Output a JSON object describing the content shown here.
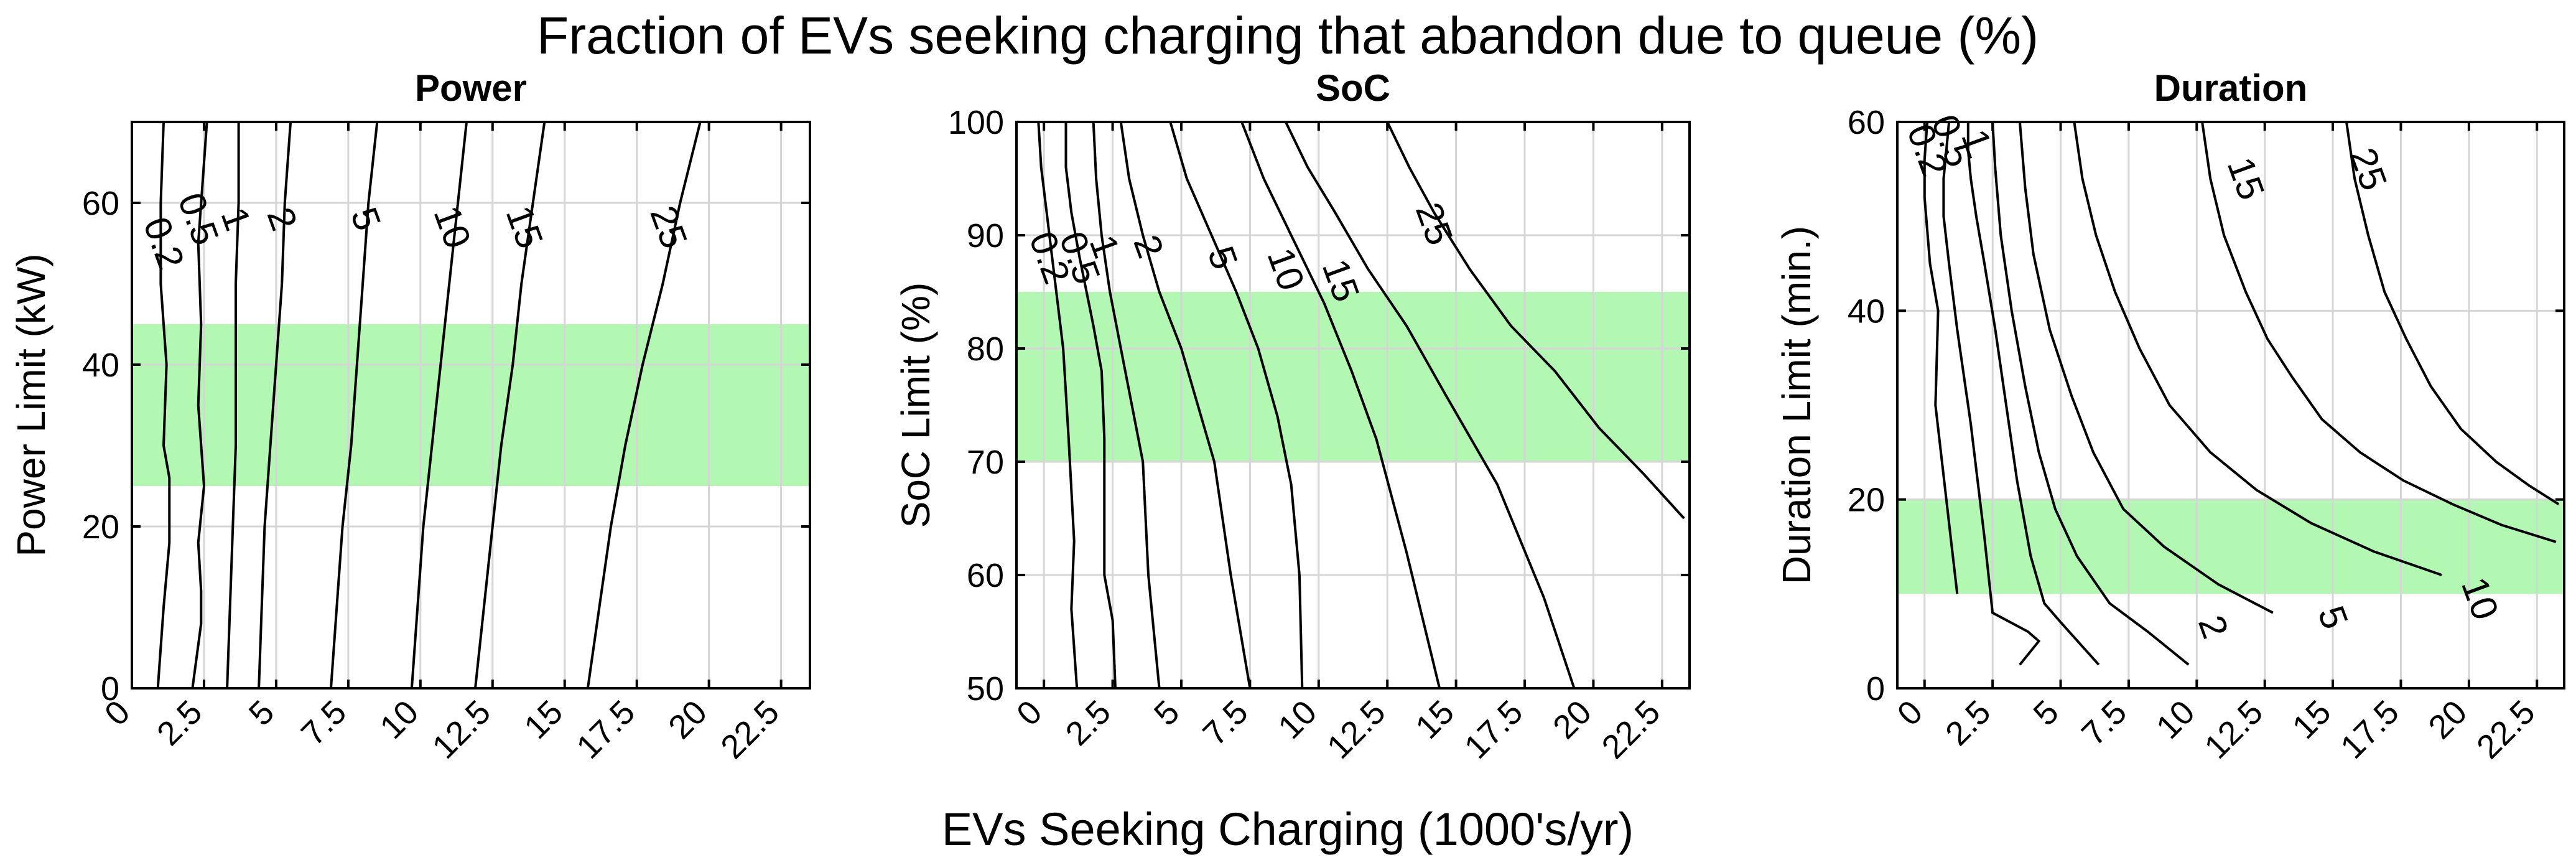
{
  "figure": {
    "title": "Fraction of EVs seeking charging that abandon due to queue (%)",
    "xlabel": "EVs Seeking Charging (1000's/yr)"
  },
  "colors": {
    "band": "#b2f7b2",
    "contour": "#000000",
    "grid": "#d6d6d6"
  },
  "chart_data": [
    {
      "type": "line",
      "title": "Power",
      "xlabel": "EVs Seeking Charging (1000's/yr)",
      "ylabel": "Power Limit (kW)",
      "xlim": [
        0,
        23.5
      ],
      "ylim": [
        0,
        70
      ],
      "xticks": [
        0,
        2.5,
        5,
        7.5,
        10,
        12.5,
        15,
        17.5,
        20,
        22.5
      ],
      "yticks": [
        0,
        20,
        40,
        60
      ],
      "grid": true,
      "band": [
        25,
        45
      ],
      "series": [
        {
          "name": "0.2",
          "x": [
            0.9,
            1.1,
            1.3,
            1.3,
            1.1,
            1.2,
            1.1,
            1.0,
            1.0,
            1.0,
            1.1
          ],
          "y": [
            0,
            10,
            18,
            26,
            30,
            40,
            45,
            50,
            55,
            60,
            70
          ],
          "label_at": [
            1.1,
            55
          ]
        },
        {
          "name": "0.5",
          "x": [
            2.1,
            2.4,
            2.4,
            2.3,
            2.5,
            2.3,
            2.4,
            2.3,
            2.5,
            2.6
          ],
          "y": [
            0,
            8,
            12,
            18,
            25,
            35,
            45,
            55,
            65,
            70
          ],
          "label_at": [
            2.3,
            58
          ]
        },
        {
          "name": "1",
          "x": [
            3.3,
            3.4,
            3.5,
            3.6,
            3.6,
            3.6,
            3.7,
            3.7
          ],
          "y": [
            0,
            10,
            20,
            30,
            40,
            50,
            60,
            70
          ],
          "label_at": [
            3.6,
            58
          ]
        },
        {
          "name": "2",
          "x": [
            4.4,
            4.5,
            4.6,
            4.8,
            5.0,
            5.2,
            5.3,
            5.5
          ],
          "y": [
            0,
            10,
            20,
            30,
            40,
            50,
            60,
            70
          ],
          "label_at": [
            5.2,
            58
          ]
        },
        {
          "name": "5",
          "x": [
            6.9,
            7.1,
            7.3,
            7.6,
            7.8,
            8.0,
            8.2,
            8.5
          ],
          "y": [
            0,
            10,
            20,
            30,
            40,
            50,
            60,
            70
          ],
          "label_at": [
            8.1,
            58
          ]
        },
        {
          "name": "10",
          "x": [
            9.7,
            9.9,
            10.1,
            10.4,
            10.7,
            11.0,
            11.3,
            11.6
          ],
          "y": [
            0,
            10,
            20,
            30,
            40,
            50,
            60,
            70
          ],
          "label_at": [
            11.1,
            57
          ]
        },
        {
          "name": "15",
          "x": [
            11.9,
            12.2,
            12.5,
            12.8,
            13.2,
            13.5,
            13.9,
            14.3
          ],
          "y": [
            0,
            10,
            20,
            30,
            40,
            50,
            60,
            70
          ],
          "label_at": [
            13.6,
            57
          ]
        },
        {
          "name": "25",
          "x": [
            15.8,
            16.2,
            16.6,
            17.1,
            17.7,
            18.4,
            19.0,
            19.7
          ],
          "y": [
            0,
            10,
            20,
            30,
            40,
            50,
            60,
            70
          ],
          "label_at": [
            18.6,
            57
          ]
        }
      ]
    },
    {
      "type": "line",
      "title": "SoC",
      "xlabel": "EVs Seeking Charging (1000's/yr)",
      "ylabel": "SoC Limit (%)",
      "xlim": [
        -1,
        23.5
      ],
      "ylim": [
        50,
        100
      ],
      "xticks": [
        0,
        2.5,
        5,
        7.5,
        10,
        12.5,
        15,
        17.5,
        20,
        22.5
      ],
      "yticks": [
        50,
        60,
        70,
        80,
        90,
        100
      ],
      "grid": true,
      "band": [
        70,
        85
      ],
      "series": [
        {
          "name": "0.2",
          "x": [
            -0.2,
            -0.1,
            0.1,
            0.3,
            0.7,
            0.9,
            1.1,
            1.0,
            1.2
          ],
          "y": [
            100,
            96,
            92,
            88,
            80,
            72,
            63,
            57,
            50
          ],
          "label_at": [
            0.2,
            88
          ]
        },
        {
          "name": "0.5",
          "x": [
            0.8,
            0.8,
            1.0,
            1.3,
            1.8,
            2.1,
            2.2,
            2.2,
            2.5,
            2.6
          ],
          "y": [
            100,
            96,
            92,
            88,
            82,
            78,
            72,
            60,
            56,
            50
          ],
          "label_at": [
            1.3,
            88
          ]
        },
        {
          "name": "1",
          "x": [
            1.8,
            1.9,
            2.1,
            2.4,
            2.8,
            3.2,
            3.6,
            3.8,
            4.2
          ],
          "y": [
            100,
            95,
            90,
            85,
            80,
            75,
            70,
            60,
            50
          ],
          "label_at": [
            2.2,
            89
          ]
        },
        {
          "name": "2",
          "x": [
            2.8,
            3.1,
            3.6,
            4.2,
            5.0,
            5.6,
            6.2,
            6.8,
            7.5
          ],
          "y": [
            100,
            95,
            90,
            85,
            80,
            75,
            70,
            60,
            50
          ],
          "label_at": [
            3.8,
            89
          ]
        },
        {
          "name": "5",
          "x": [
            4.6,
            5.2,
            6.1,
            7.0,
            7.8,
            8.5,
            9.0,
            9.3,
            9.4
          ],
          "y": [
            100,
            95,
            90,
            85,
            80,
            74,
            68,
            60,
            50
          ],
          "label_at": [
            6.5,
            88
          ]
        },
        {
          "name": "10",
          "x": [
            7.2,
            8.0,
            9.0,
            10.2,
            11.2,
            12.1,
            13.2,
            14.4
          ],
          "y": [
            100,
            95,
            90,
            84,
            78,
            72,
            62,
            50
          ],
          "label_at": [
            8.8,
            87
          ]
        },
        {
          "name": "15",
          "x": [
            8.8,
            9.6,
            10.6,
            11.8,
            13.2,
            14.6,
            16.5,
            18.2,
            19.3
          ],
          "y": [
            100,
            96,
            92,
            87,
            82,
            76,
            68,
            58,
            50
          ],
          "label_at": [
            10.8,
            86
          ]
        },
        {
          "name": "25",
          "x": [
            12.5,
            13.3,
            14.2,
            15.5,
            17.0,
            18.6,
            20.2,
            21.8,
            23.3
          ],
          "y": [
            100,
            96,
            92,
            87,
            82,
            78,
            73,
            69,
            65
          ],
          "label_at": [
            14.2,
            91
          ]
        }
      ]
    },
    {
      "type": "line",
      "title": "Duration",
      "xlabel": "EVs Seeking Charging (1000's/yr)",
      "ylabel": "Duration Limit (min.)",
      "xlim": [
        -1,
        23.5
      ],
      "ylim": [
        0,
        60
      ],
      "xticks": [
        0,
        2.5,
        5,
        7.5,
        10,
        12.5,
        15,
        17.5,
        20,
        22.5
      ],
      "yticks": [
        0,
        20,
        40,
        60
      ],
      "grid": true,
      "band": [
        10,
        20
      ],
      "series": [
        {
          "name": "0.2",
          "x": [
            0.1,
            0.0,
            0.0,
            0.2,
            0.5,
            0.4,
            0.8,
            1.0,
            1.2
          ],
          "y": [
            60,
            56,
            52,
            45,
            40,
            30,
            20,
            15,
            10
          ],
          "label_at": [
            0.1,
            57
          ]
        },
        {
          "name": "0.5",
          "x": [
            0.9,
            0.8,
            0.7,
            0.7,
            0.9,
            1.2,
            1.7,
            2.2,
            2.5,
            3.8,
            4.2,
            3.5
          ],
          "y": [
            60,
            57,
            54,
            50,
            45,
            38,
            28,
            16,
            8,
            6,
            5,
            2.5
          ],
          "label_at": [
            1.0,
            58
          ]
        },
        {
          "name": "1",
          "x": [
            1.6,
            1.6,
            1.7,
            1.9,
            2.2,
            2.6,
            3.0,
            3.4,
            3.9,
            4.4,
            5.0,
            6.4
          ],
          "y": [
            60,
            57,
            54,
            50,
            45,
            38,
            30,
            22,
            14,
            9,
            7,
            2.5
          ],
          "label_at": [
            1.9,
            58
          ]
        },
        {
          "name": "2",
          "x": [
            2.5,
            2.6,
            2.8,
            3.2,
            3.7,
            4.2,
            4.8,
            5.6,
            6.8,
            8.2,
            9.7
          ],
          "y": [
            60,
            55,
            48,
            40,
            32,
            25,
            19,
            14,
            9,
            6,
            2.5
          ],
          "label_at": [
            10.6,
            6.5
          ]
        },
        {
          "name": "5",
          "x": [
            3.5,
            3.7,
            4.0,
            4.6,
            5.4,
            6.2,
            7.3,
            8.8,
            10.8,
            12.8
          ],
          "y": [
            60,
            53,
            46,
            38,
            31,
            25,
            19,
            15,
            11,
            8
          ],
          "label_at": [
            15.0,
            7.5
          ]
        },
        {
          "name": "10",
          "x": [
            5.5,
            5.8,
            6.3,
            7.0,
            7.9,
            9.0,
            10.5,
            12.2,
            14.2,
            16.5,
            19.0
          ],
          "y": [
            60,
            54,
            48,
            42,
            36,
            30,
            25,
            21,
            17.5,
            14.5,
            12
          ],
          "label_at": [
            20.4,
            9.5
          ]
        },
        {
          "name": "15",
          "x": [
            10.2,
            10.5,
            11.0,
            11.8,
            12.6,
            13.5,
            14.6,
            16.0,
            17.6,
            19.4,
            21.2,
            23.2
          ],
          "y": [
            60,
            54,
            48,
            42,
            37,
            33,
            28.5,
            25,
            22,
            19.5,
            17.3,
            15.5
          ],
          "label_at": [
            11.8,
            54
          ]
        },
        {
          "name": "25",
          "x": [
            15.5,
            15.8,
            16.3,
            16.9,
            17.7,
            18.6,
            19.7,
            21.0,
            22.2,
            23.3
          ],
          "y": [
            60,
            54,
            48,
            42,
            37,
            32,
            27.5,
            24,
            21.5,
            19.5
          ],
          "label_at": [
            16.3,
            55
          ]
        }
      ]
    }
  ]
}
